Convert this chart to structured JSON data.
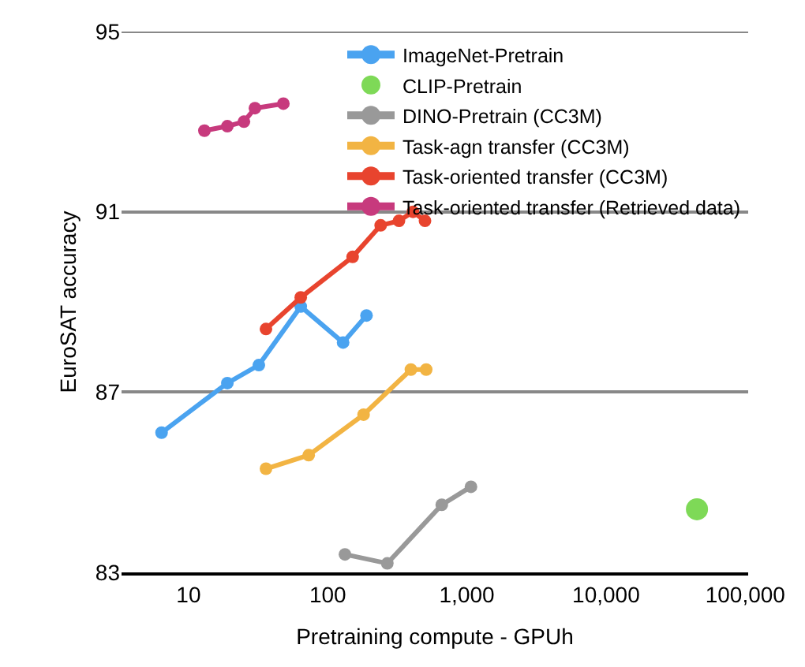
{
  "chart_data": {
    "type": "line",
    "xlabel": "Pretraining compute - GPUh",
    "ylabel": "EuroSAT accuracy",
    "log": "x",
    "xlim": [
      3.3,
      105000
    ],
    "xticks": [
      {
        "value": 10,
        "label": "10"
      },
      {
        "value": 100,
        "label": "100"
      },
      {
        "value": 1000,
        "label": "1,000"
      },
      {
        "value": 10000,
        "label": "10,000"
      },
      {
        "value": 100000,
        "label": "100,000"
      }
    ],
    "ylim": [
      83,
      95
    ],
    "yticks": [
      83,
      87,
      91,
      95
    ],
    "grid": "y",
    "legend": "top right",
    "marker": "circle",
    "series": [
      {
        "name": "ImageNet-Pretrain",
        "color": "#4aa3f0",
        "x": [
          6.4,
          19,
          32,
          64,
          129,
          190
        ],
        "values": [
          86.1,
          87.2,
          87.6,
          88.9,
          88.1,
          88.7
        ]
      },
      {
        "name": "CLIP-Pretrain",
        "color": "#7ed957",
        "type": "scatter",
        "x": [
          45000
        ],
        "values": [
          84.4
        ]
      },
      {
        "name": "DINO-Pretrain (CC3M)",
        "color": "#999999",
        "x": [
          133,
          268,
          660,
          1070
        ],
        "values": [
          83.4,
          83.2,
          84.5,
          84.9
        ]
      },
      {
        "name": "Task-agn transfer (CC3M)",
        "color": "#f2b443",
        "x": [
          36,
          73,
          181,
          396,
          510
        ],
        "values": [
          85.3,
          85.6,
          86.5,
          87.5,
          87.5
        ]
      },
      {
        "name": "Task-oriented transfer (CC3M)",
        "color": "#e8442e",
        "x": [
          36,
          64,
          151,
          240,
          325,
          410,
          500
        ],
        "values": [
          88.4,
          89.1,
          90.0,
          90.7,
          90.8,
          91.0,
          90.8
        ]
      },
      {
        "name": "Task-oriented transfer (Retrieved data)",
        "color": "#c73a7d",
        "x": [
          13,
          19,
          25,
          30,
          48
        ],
        "values": [
          92.8,
          92.9,
          93.0,
          93.3,
          93.4
        ]
      }
    ]
  }
}
